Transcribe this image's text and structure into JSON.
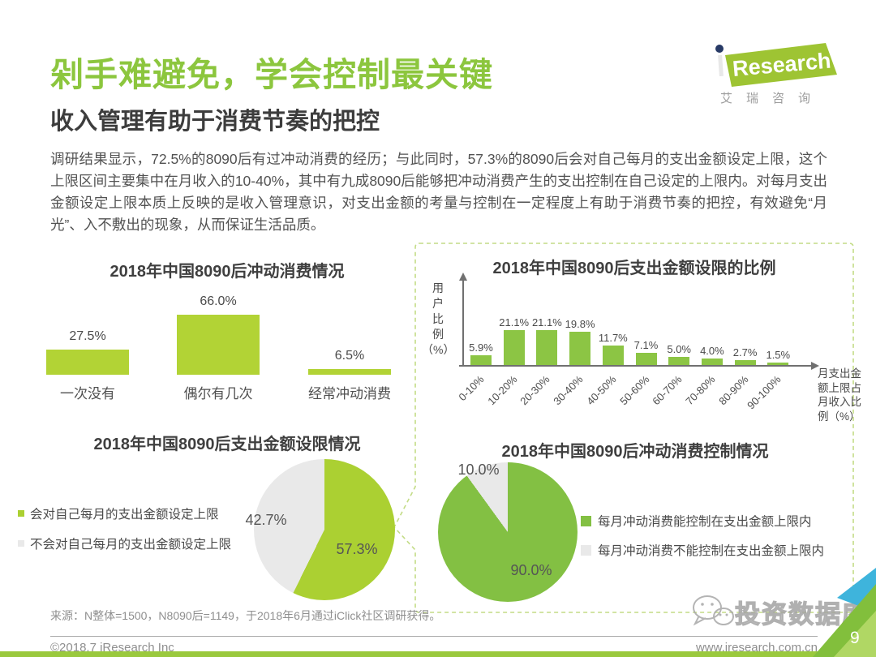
{
  "page": {
    "title": "剁手难避免，学会控制最关键",
    "subtitle": "收入管理有助于消费节奏的把控",
    "body": "调研结果显示，72.5%的8090后有过冲动消费的经历；与此同时，57.3%的8090后会对自己每月的支出金额设定上限，这个上限区间主要集中在月收入的10-40%，其中有九成8090后能够把冲动消费产生的支出控制在自己设定的上限内。对每月支出金额设定上限本质上反映的是收入管理意识，对支出金额的考量与控制在一定程度上有助于消费节奏的把控，有效避免“月光”、入不敷出的现象，从而保证生活品质。"
  },
  "logo": {
    "brand": "Research",
    "cn": "艾瑞咨询"
  },
  "watermark": {
    "text": "投资数据库",
    "icon": "wechat-icon"
  },
  "footer": {
    "source": "来源：N整体=1500，N8090后=1149，于2018年6月通过iClick社区调研获得。",
    "copyright": "©2018.7 iResearch Inc",
    "website": "www.iresearch.com.cn",
    "page_number": "9"
  },
  "colors": {
    "title_green": "#8cc63e",
    "left_chart_green": "#b2d335",
    "right_chart_green": "#8cc544",
    "pie_gray": "#e9e9e9",
    "dashed_border": "#c3dc86",
    "bottom_strip": "#9ac93d",
    "corner_teal": "#3eb4dc"
  },
  "chart_data": [
    {
      "id": "impulse-consumption-bar",
      "type": "bar",
      "title": "2018年中国8090后冲动消费情况",
      "categories": [
        "一次没有",
        "偶尔有几次",
        "经常冲动消费"
      ],
      "values": [
        27.5,
        66.0,
        6.5
      ],
      "unit": "%",
      "bar_color": "#b2d335",
      "grid": false,
      "axes_shown": false
    },
    {
      "id": "spending-cap-ratio-bar",
      "type": "bar",
      "title": "2018年中国8090后支出金额设限的比例",
      "ylabel": "用户比例（%）",
      "xlabel": "月支出金额上限占月收入比例（%）",
      "categories": [
        "0-10%",
        "10-20%",
        "20-30%",
        "30-40%",
        "40-50%",
        "50-60%",
        "60-70%",
        "70-80%",
        "80-90%",
        "90-100%"
      ],
      "values": [
        5.9,
        21.1,
        21.1,
        19.8,
        11.7,
        7.1,
        5.0,
        4.0,
        2.7,
        1.5
      ],
      "unit": "%",
      "bar_color": "#8cc544",
      "grid": false,
      "axes_shown": true,
      "tick_rotation_deg": -45
    },
    {
      "id": "spending-cap-pie",
      "type": "pie",
      "title": "2018年中国8090后支出金额设限情况",
      "slices": [
        {
          "label": "会对自己每月的支出金额设定上限",
          "value": 57.3,
          "color": "#abd032"
        },
        {
          "label": "不会对自己每月的支出金额设定上限",
          "value": 42.7,
          "color": "#e9e9e9"
        }
      ],
      "legend_position": "left",
      "start_at_top": true
    },
    {
      "id": "impulse-control-pie",
      "type": "pie",
      "title": "2018年中国8090后冲动消费控制情况",
      "slices": [
        {
          "label": "每月冲动消费能控制在支出金额上限内",
          "value": 90.0,
          "color": "#83c043"
        },
        {
          "label": "每月冲动消费不能控制在支出金额上限内",
          "value": 10.0,
          "color": "#e9e9e9"
        }
      ],
      "legend_position": "right",
      "minor_slice_ends_at_top": true
    }
  ]
}
